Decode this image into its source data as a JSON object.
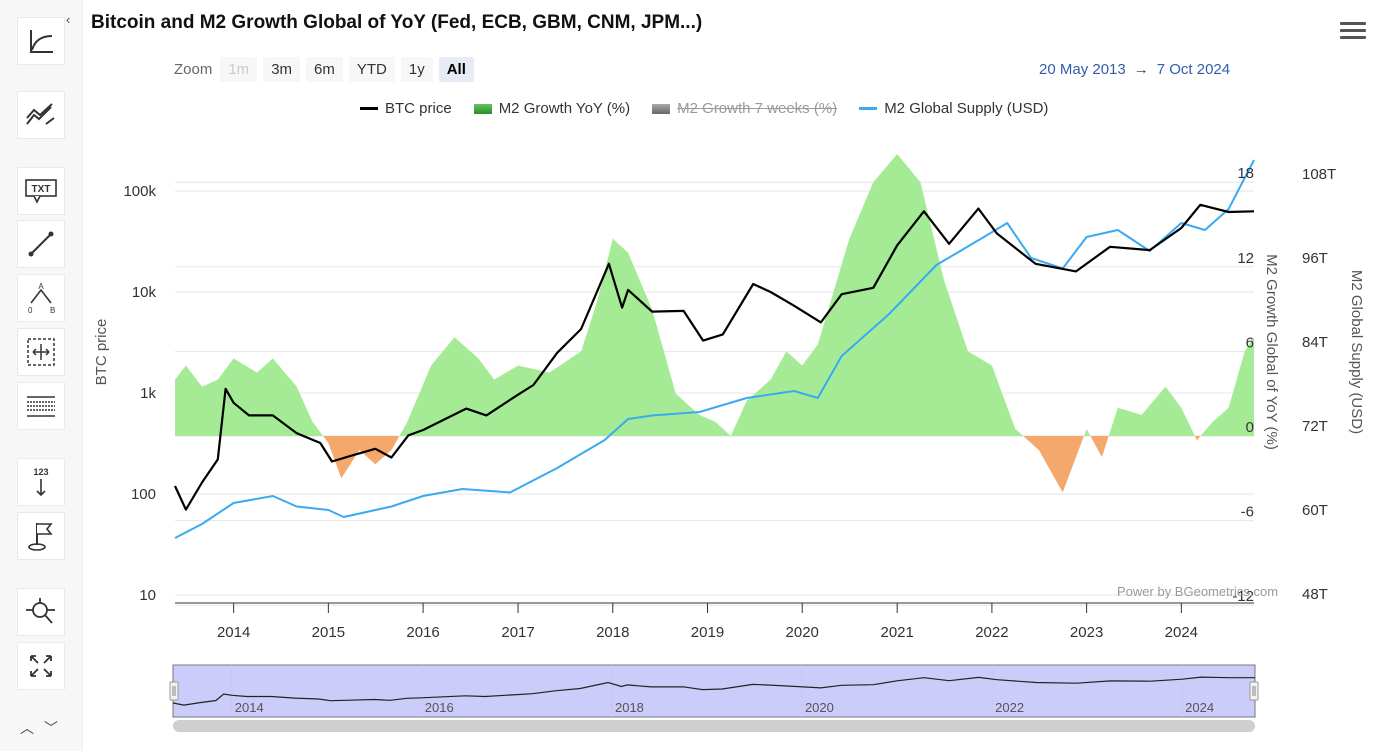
{
  "title": "Bitcoin and M2 Growth Global of YoY (Fed, ECB, GBM, CNM, JPM...)",
  "zoom": {
    "label": "Zoom",
    "buttons": [
      {
        "label": "1m",
        "state": "disabled"
      },
      {
        "label": "3m",
        "state": "normal"
      },
      {
        "label": "6m",
        "state": "normal"
      },
      {
        "label": "YTD",
        "state": "normal"
      },
      {
        "label": "1y",
        "state": "normal"
      },
      {
        "label": "All",
        "state": "active"
      }
    ]
  },
  "range": {
    "from": "20 May 2013",
    "arrow": "→",
    "to": "7 Oct 2024"
  },
  "legend": [
    {
      "label": "BTC price",
      "color": "#000000",
      "symbol": "line",
      "visible": true
    },
    {
      "label": "M2 Growth YoY (%)",
      "color": "#2e9e2e",
      "symbol": "area",
      "visible": true
    },
    {
      "label": "M2 Growth 7 weeks (%)",
      "color": "#777777",
      "symbol": "area",
      "visible": false
    },
    {
      "label": "M2 Global Supply (USD)",
      "color": "#3aaaf0",
      "symbol": "line",
      "visible": true
    }
  ],
  "credits": "Power by BGeometrics.com",
  "sidebar_tools": [
    "chart-type-icon",
    "indicators-icon",
    "text-annotation-icon",
    "line-draw-icon",
    "fibonacci-icon",
    "measure-icon",
    "horizontal-lines-icon",
    "vertical-counter-icon",
    "flag-icon",
    "zoom-tool-icon",
    "fullscreen-icon"
  ],
  "colors": {
    "btc": "#000000",
    "m2_pos": "#a5eb96",
    "m2_neg": "#f5a86b",
    "supply": "#3aaaf0",
    "navigator": "#ccccfa"
  },
  "chart_data": {
    "type": "line",
    "title": "Bitcoin and M2 Growth Global of YoY (Fed, ECB, GBM, CNM, JPM...)",
    "x_range": [
      "2013-05-20",
      "2024-10-07"
    ],
    "x_ticks": [
      "2014",
      "2015",
      "2016",
      "2017",
      "2018",
      "2019",
      "2020",
      "2021",
      "2022",
      "2023",
      "2024"
    ],
    "axes": {
      "btc": {
        "label": "BTC price",
        "scale": "log",
        "ticks": [
          "10",
          "100",
          "1k",
          "10k",
          "100k"
        ],
        "range": [
          10,
          100000
        ]
      },
      "m2_growth": {
        "label": "M2 Growth Global of YoY (%)",
        "ticks": [
          "-12",
          "-6",
          "0",
          "6",
          "12",
          "18"
        ],
        "range": [
          -12,
          18
        ]
      },
      "m2_supply": {
        "label": "M2 Global Supply (USD)",
        "ticks": [
          "48T",
          "60T",
          "72T",
          "84T",
          "96T",
          "108T"
        ],
        "range": [
          48,
          108
        ]
      }
    },
    "series": [
      {
        "name": "BTC price",
        "axis": "btc",
        "points": [
          [
            "2013-05-20",
            120
          ],
          [
            "2013-07-01",
            70
          ],
          [
            "2013-09-01",
            130
          ],
          [
            "2013-11-01",
            220
          ],
          [
            "2013-12-01",
            1100
          ],
          [
            "2014-01-01",
            800
          ],
          [
            "2014-03-01",
            600
          ],
          [
            "2014-06-01",
            600
          ],
          [
            "2014-09-01",
            400
          ],
          [
            "2014-12-01",
            320
          ],
          [
            "2015-01-15",
            210
          ],
          [
            "2015-04-01",
            240
          ],
          [
            "2015-07-01",
            280
          ],
          [
            "2015-09-01",
            230
          ],
          [
            "2015-11-05",
            380
          ],
          [
            "2016-01-01",
            430
          ],
          [
            "2016-06-15",
            700
          ],
          [
            "2016-09-01",
            600
          ],
          [
            "2016-12-31",
            960
          ],
          [
            "2017-03-01",
            1200
          ],
          [
            "2017-06-01",
            2500
          ],
          [
            "2017-09-01",
            4300
          ],
          [
            "2017-12-17",
            19000
          ],
          [
            "2018-02-06",
            7000
          ],
          [
            "2018-03-01",
            10500
          ],
          [
            "2018-06-01",
            6400
          ],
          [
            "2018-10-01",
            6500
          ],
          [
            "2018-12-15",
            3300
          ],
          [
            "2019-03-01",
            3800
          ],
          [
            "2019-06-26",
            12000
          ],
          [
            "2019-09-01",
            10000
          ],
          [
            "2019-12-01",
            7300
          ],
          [
            "2020-03-13",
            5000
          ],
          [
            "2020-06-01",
            9500
          ],
          [
            "2020-10-01",
            11000
          ],
          [
            "2021-01-01",
            29000
          ],
          [
            "2021-04-14",
            63000
          ],
          [
            "2021-07-20",
            30000
          ],
          [
            "2021-11-10",
            67000
          ],
          [
            "2022-01-20",
            38000
          ],
          [
            "2022-06-18",
            19000
          ],
          [
            "2022-11-21",
            16000
          ],
          [
            "2023-04-01",
            28000
          ],
          [
            "2023-09-01",
            26000
          ],
          [
            "2024-01-01",
            43000
          ],
          [
            "2024-03-14",
            73000
          ],
          [
            "2024-07-01",
            62000
          ],
          [
            "2024-10-07",
            63000
          ]
        ]
      },
      {
        "name": "M2 Growth YoY (%)",
        "axis": "m2_growth",
        "points": [
          [
            "2013-05-20",
            4
          ],
          [
            "2013-07-01",
            5
          ],
          [
            "2013-09-01",
            3.5
          ],
          [
            "2013-11-01",
            4
          ],
          [
            "2014-01-01",
            5.5
          ],
          [
            "2014-04-01",
            4.5
          ],
          [
            "2014-06-01",
            5.5
          ],
          [
            "2014-09-01",
            3.5
          ],
          [
            "2014-11-01",
            1
          ],
          [
            "2015-01-01",
            -0.5
          ],
          [
            "2015-02-20",
            -3
          ],
          [
            "2015-05-01",
            -1
          ],
          [
            "2015-07-01",
            -2
          ],
          [
            "2015-09-01",
            -1
          ],
          [
            "2015-11-01",
            1
          ],
          [
            "2016-02-01",
            5
          ],
          [
            "2016-05-01",
            7
          ],
          [
            "2016-08-01",
            5.5
          ],
          [
            "2016-10-01",
            4
          ],
          [
            "2017-01-01",
            5
          ],
          [
            "2017-05-01",
            4.5
          ],
          [
            "2017-09-01",
            6
          ],
          [
            "2017-11-01",
            9.5
          ],
          [
            "2018-01-01",
            14
          ],
          [
            "2018-03-01",
            13
          ],
          [
            "2018-06-01",
            9
          ],
          [
            "2018-09-01",
            3
          ],
          [
            "2018-12-01",
            1.5
          ],
          [
            "2019-02-01",
            1
          ],
          [
            "2019-04-01",
            0
          ],
          [
            "2019-06-01",
            2.5
          ],
          [
            "2019-09-01",
            4
          ],
          [
            "2019-11-01",
            6
          ],
          [
            "2020-01-01",
            5
          ],
          [
            "2020-03-01",
            6.5
          ],
          [
            "2020-07-01",
            14
          ],
          [
            "2020-10-01",
            18
          ],
          [
            "2021-01-01",
            20
          ],
          [
            "2021-04-01",
            18
          ],
          [
            "2021-07-01",
            11
          ],
          [
            "2021-10-01",
            6
          ],
          [
            "2022-01-01",
            5
          ],
          [
            "2022-04-01",
            0.5
          ],
          [
            "2022-07-01",
            -1
          ],
          [
            "2022-10-01",
            -4
          ],
          [
            "2023-01-01",
            0.5
          ],
          [
            "2023-03-01",
            -1.5
          ],
          [
            "2023-05-01",
            2
          ],
          [
            "2023-08-01",
            1.5
          ],
          [
            "2023-11-01",
            3.5
          ],
          [
            "2024-01-01",
            2
          ],
          [
            "2024-03-01",
            -0.3
          ],
          [
            "2024-05-01",
            1
          ],
          [
            "2024-07-01",
            2
          ],
          [
            "2024-09-01",
            6
          ],
          [
            "2024-10-07",
            7
          ]
        ]
      },
      {
        "name": "M2 Global Supply (USD)",
        "axis": "m2_supply",
        "points": [
          [
            "2013-05-20",
            56
          ],
          [
            "2013-09-01",
            58
          ],
          [
            "2014-01-01",
            61
          ],
          [
            "2014-06-01",
            62
          ],
          [
            "2014-09-01",
            60.5
          ],
          [
            "2015-01-01",
            60
          ],
          [
            "2015-03-01",
            59
          ],
          [
            "2015-09-01",
            60.5
          ],
          [
            "2016-01-01",
            62
          ],
          [
            "2016-06-01",
            63
          ],
          [
            "2016-12-01",
            62.5
          ],
          [
            "2017-06-01",
            66
          ],
          [
            "2017-12-01",
            70
          ],
          [
            "2018-03-01",
            73
          ],
          [
            "2018-06-01",
            73.5
          ],
          [
            "2018-12-01",
            74
          ],
          [
            "2019-06-01",
            76
          ],
          [
            "2019-12-01",
            77
          ],
          [
            "2020-03-01",
            76
          ],
          [
            "2020-06-01",
            82
          ],
          [
            "2020-12-01",
            88
          ],
          [
            "2021-06-01",
            95
          ],
          [
            "2021-09-01",
            97
          ],
          [
            "2021-12-01",
            99
          ],
          [
            "2022-03-01",
            101
          ],
          [
            "2022-06-01",
            96
          ],
          [
            "2022-10-01",
            94.5
          ],
          [
            "2023-01-01",
            99
          ],
          [
            "2023-05-01",
            100
          ],
          [
            "2023-09-01",
            97
          ],
          [
            "2024-01-01",
            101
          ],
          [
            "2024-04-01",
            100
          ],
          [
            "2024-07-01",
            103
          ],
          [
            "2024-10-07",
            110
          ]
        ]
      }
    ],
    "hidden_series": [
      "M2 Growth 7 weeks (%)"
    ],
    "navigator_ticks": [
      "2014",
      "2016",
      "2018",
      "2020",
      "2022",
      "2024"
    ]
  }
}
